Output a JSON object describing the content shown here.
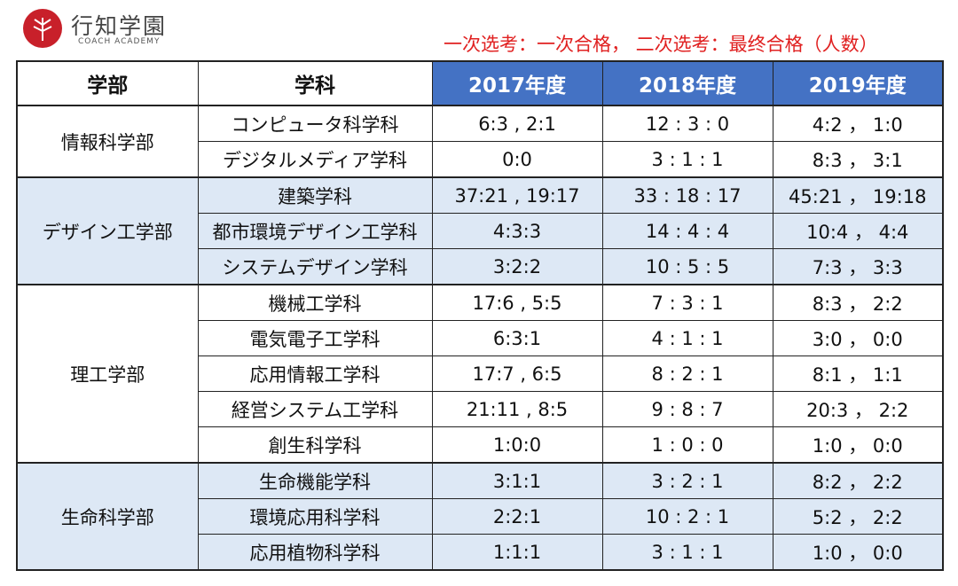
{
  "header": {
    "brand": "行知学園",
    "brand_sub": "COACH ACADEMY",
    "caption": "一次选考：一次合格， 二次选考：最终合格（人数）"
  },
  "table": {
    "columns": [
      "学部",
      "学科",
      "2017年度",
      "2018年度",
      "2019年度"
    ],
    "groups": [
      {
        "faculty": "情報科学部",
        "rows": [
          [
            "コンピュータ科学科",
            "6:3 , 2:1",
            "12 : 3 : 0",
            "4:2 ， 1:0"
          ],
          [
            "デジタルメディア学科",
            "0:0",
            "3 : 1 : 1",
            "8:3 ， 3:1"
          ]
        ]
      },
      {
        "faculty": "デザイン工学部",
        "rows": [
          [
            "建築学科",
            "37:21 , 19:17",
            "33 : 18 : 17",
            "45:21 ， 19:18"
          ],
          [
            "都市環境デザイン工学科",
            "4:3:3",
            "14 : 4 : 4",
            "10:4 ， 4:4"
          ],
          [
            "システムデザイン学科",
            "3:2:2",
            "10 : 5 : 5",
            "7:3 ， 3:3"
          ]
        ]
      },
      {
        "faculty": "理工学部",
        "rows": [
          [
            "機械工学科",
            "17:6 , 5:5",
            "7 : 3 : 1",
            "8:3 ， 2:2"
          ],
          [
            "電気電子工学科",
            "6:3:1",
            "4 : 1 : 1",
            "3:0 ， 0:0"
          ],
          [
            "応用情報工学科",
            "17:7 , 6:5",
            "8 : 2 : 1",
            "8:1 ， 1:1"
          ],
          [
            "経営システム工学科",
            "21:11 , 8:5",
            "9 : 8 : 7",
            "20:3 ， 2:2"
          ],
          [
            "創生科学科",
            "1:0:0",
            "1 : 0 : 0",
            "1:0 ， 0:0"
          ]
        ]
      },
      {
        "faculty": "生命科学部",
        "rows": [
          [
            "生命機能学科",
            "3:1:1",
            "3 : 2 : 1",
            "8:2 ， 2:2"
          ],
          [
            "環境応用科学科",
            "2:2:1",
            "10 : 2 : 1",
            "5:2 ， 2:2"
          ],
          [
            "応用植物科学科",
            "1:1:1",
            "3 : 1 : 1",
            "1:0 ， 0:0"
          ]
        ]
      }
    ]
  }
}
